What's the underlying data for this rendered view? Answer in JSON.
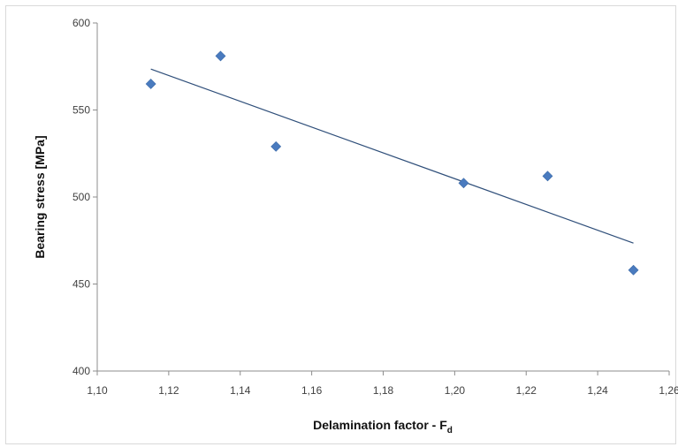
{
  "chart_data": {
    "type": "scatter",
    "title": "",
    "xlabel": "Delamination factor - F",
    "xlabel_subscript": "d",
    "ylabel": "Bearing stress [MPa]",
    "xlim": [
      1.1,
      1.26
    ],
    "ylim": [
      400,
      600
    ],
    "x_ticks": [
      "1,10",
      "1,12",
      "1,14",
      "1,16",
      "1,18",
      "1,20",
      "1,22",
      "1,24",
      "1,26"
    ],
    "y_ticks": [
      "400",
      "450",
      "500",
      "550",
      "600"
    ],
    "grid": false,
    "legend": "none",
    "marker": "diamond",
    "colors": {
      "marker": "#4a7bbf",
      "trendline": "#2f4f7a",
      "axis": "#8c8c8c"
    },
    "series": [
      {
        "x": [
          1.115,
          1.1345,
          1.15,
          1.2025,
          1.226,
          1.25
        ],
        "y": [
          565,
          581,
          529,
          508,
          512,
          458
        ]
      }
    ],
    "trendline": {
      "type": "linear",
      "x": [
        1.115,
        1.25
      ],
      "y": [
        573.5,
        473.5
      ]
    }
  }
}
